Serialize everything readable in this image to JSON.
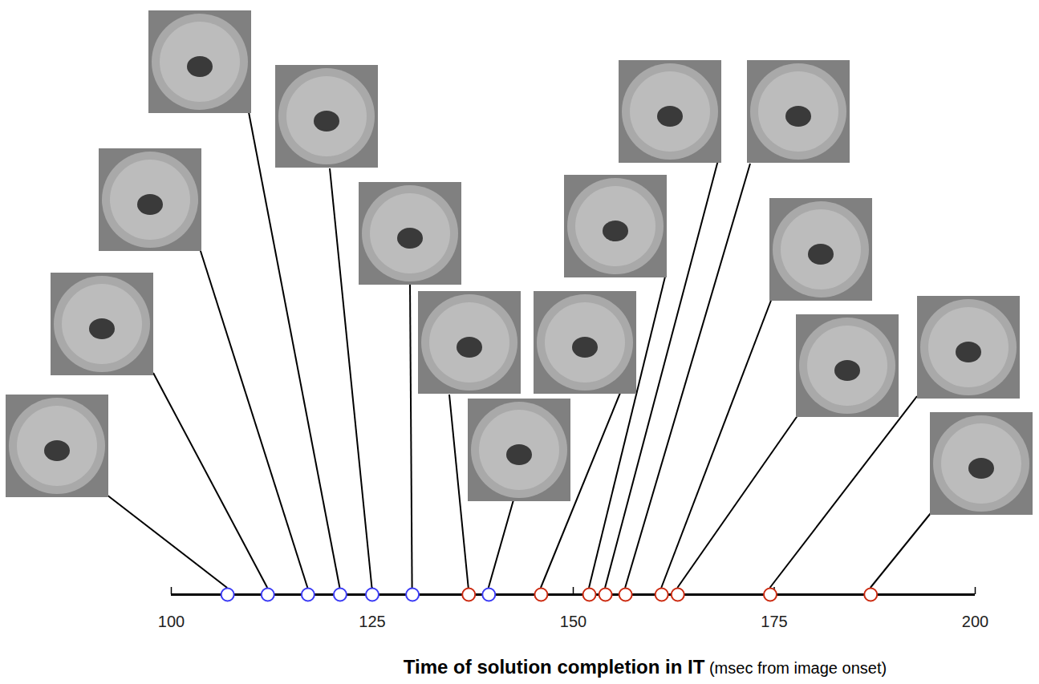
{
  "chart_data": {
    "type": "timeline",
    "x_label": "Time of solution completion in IT (msec from image onset)",
    "x": [
      107,
      112,
      117,
      121,
      125,
      130,
      137,
      139.5,
      146,
      152,
      154,
      156.5,
      161,
      163,
      174.5,
      187
    ],
    "colors": [
      "#3a3af5",
      "#3a3af5",
      "#3a3af5",
      "#3a3af5",
      "#3a3af5",
      "#3a3af5",
      "#cc2a10",
      "#3a3af5",
      "#cc2a10",
      "#cc2a10",
      "#cc2a10",
      "#cc2a10",
      "#cc2a10",
      "#cc2a10",
      "#cc2a10",
      "#cc2a10"
    ],
    "marker": "circle",
    "xlim": [
      100,
      200
    ],
    "xticks": [
      100,
      125,
      150,
      175,
      200
    ],
    "tick_labels": "x"
  }
}
